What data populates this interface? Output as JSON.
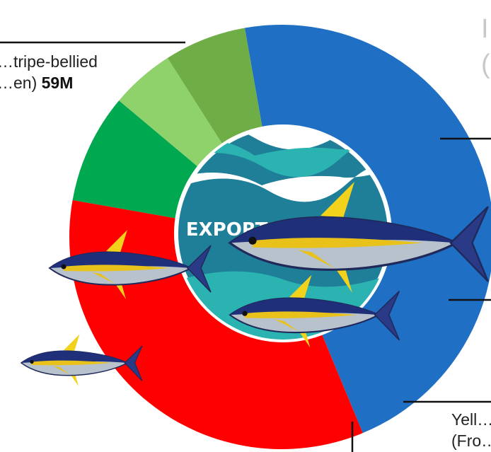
{
  "chart_data": {
    "type": "pie",
    "subtype": "donut",
    "center_badge_text": "EXPORTS",
    "slices": [
      {
        "label_line1": "…tripe-bellied",
        "label_line2": "…en)",
        "value_text": "59M",
        "color": "#1f6fc5"
      },
      {
        "label_line1": "",
        "label_line2": "",
        "value_text": "",
        "color": "#ff0000"
      },
      {
        "label_line1": "",
        "label_line2": "",
        "value_text": "",
        "color": "#00a84f"
      },
      {
        "label_line1": "Yell…",
        "label_line2": "(Fro…",
        "value_text": "",
        "color": "#8fd16a"
      },
      {
        "label_line1": "",
        "label_line2": "",
        "value_text": "",
        "color": "#6fae46"
      }
    ],
    "slice_fractions": [
      0.4653,
      0.3403,
      0.0833,
      0.0486,
      0.0625
    ],
    "start_angle_deg": -10,
    "faded_title_fragments": [
      "I",
      "("
    ]
  }
}
